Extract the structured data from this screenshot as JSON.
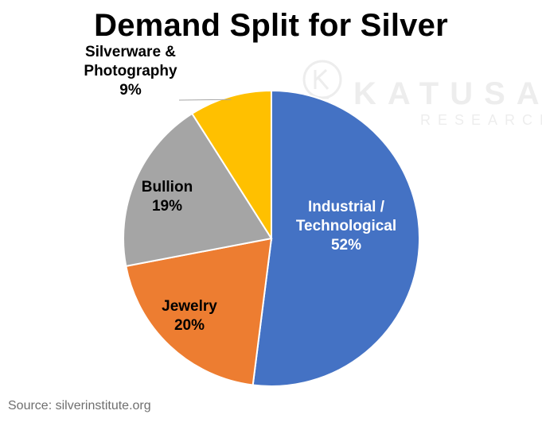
{
  "chart_data": {
    "type": "pie",
    "title": "Demand Split for Silver",
    "slices": [
      {
        "label": "Industrial / Technological",
        "label_lines": [
          "Industrial /",
          "Technological"
        ],
        "value": 52,
        "value_label": "52%",
        "color": "#4472C4",
        "label_color": "#ffffff"
      },
      {
        "label": "Jewelry",
        "label_lines": [
          "Jewelry"
        ],
        "value": 20,
        "value_label": "20%",
        "color": "#ED7D31",
        "label_color": "#000000"
      },
      {
        "label": "Bullion",
        "label_lines": [
          "Bullion"
        ],
        "value": 19,
        "value_label": "19%",
        "color": "#A5A5A5",
        "label_color": "#000000"
      },
      {
        "label": "Silverware & Photography",
        "label_lines": [
          "Silverware &",
          "Photography"
        ],
        "value": 9,
        "value_label": "9%",
        "color": "#FFC000",
        "label_color": "#000000"
      }
    ],
    "start_angle": "top",
    "direction": "clockwise",
    "legend": "none"
  },
  "source": "Source: silverinstitute.org",
  "watermark": {
    "name": "KATUSA",
    "sub": "RESEARCH"
  }
}
